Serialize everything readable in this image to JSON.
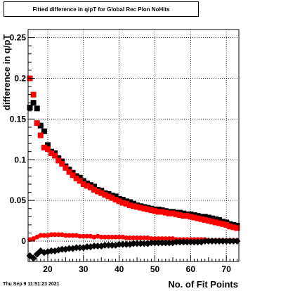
{
  "chart_data": {
    "type": "scatter",
    "title": "Fitted difference in q/pT for Global Rec Pion NoHits",
    "xlabel": "No. of Fit Points",
    "ylabel": "difference in q/pT",
    "xlim": [
      14.5,
      73.5
    ],
    "ylim": [
      -0.025,
      0.26
    ],
    "x_ticks": [
      20,
      30,
      40,
      50,
      60,
      70
    ],
    "y_ticks": [
      0,
      0.05,
      0.1,
      0.15,
      0.2,
      0.25
    ],
    "y_tick_labels": [
      "0",
      "0.05",
      "0.1",
      "0.15",
      "0.2",
      "0.25"
    ],
    "grid": true,
    "series": [
      {
        "color": "#000000",
        "marker": "square",
        "x": [
          15,
          16,
          17,
          18,
          19,
          20,
          21,
          22,
          23,
          24,
          25,
          26,
          27,
          28,
          29,
          30,
          31,
          32,
          33,
          34,
          35,
          36,
          37,
          38,
          39,
          40,
          41,
          42,
          43,
          44,
          45,
          46,
          47,
          48,
          49,
          50,
          51,
          52,
          53,
          54,
          55,
          56,
          57,
          58,
          59,
          60,
          61,
          62,
          63,
          64,
          65,
          66,
          67,
          68,
          69,
          70,
          71,
          72,
          73
        ],
        "y": [
          0.164,
          0.17,
          0.163,
          0.142,
          0.135,
          0.118,
          0.11,
          0.108,
          0.102,
          0.098,
          0.092,
          0.088,
          0.084,
          0.08,
          0.078,
          0.074,
          0.071,
          0.069,
          0.067,
          0.063,
          0.062,
          0.059,
          0.058,
          0.056,
          0.055,
          0.052,
          0.051,
          0.049,
          0.048,
          0.046,
          0.044,
          0.043,
          0.042,
          0.041,
          0.04,
          0.039,
          0.039,
          0.038,
          0.037,
          0.036,
          0.036,
          0.035,
          0.035,
          0.034,
          0.033,
          0.033,
          0.032,
          0.031,
          0.03,
          0.03,
          0.029,
          0.028,
          0.027,
          0.026,
          0.024,
          0.023,
          0.021,
          0.02,
          0.019
        ]
      },
      {
        "color": "#ff0000",
        "marker": "square",
        "x": [
          15,
          16,
          17,
          18,
          19,
          20,
          21,
          22,
          23,
          24,
          25,
          26,
          27,
          28,
          29,
          30,
          31,
          32,
          33,
          34,
          35,
          36,
          37,
          38,
          39,
          40,
          41,
          42,
          43,
          44,
          45,
          46,
          47,
          48,
          49,
          50,
          51,
          52,
          53,
          54,
          55,
          56,
          57,
          58,
          59,
          60,
          61,
          62,
          63,
          64,
          65,
          66,
          67,
          68,
          69,
          70,
          71,
          72,
          73
        ],
        "y": [
          0.2,
          0.18,
          0.145,
          0.13,
          0.115,
          0.113,
          0.108,
          0.105,
          0.099,
          0.095,
          0.09,
          0.085,
          0.081,
          0.077,
          0.074,
          0.07,
          0.068,
          0.066,
          0.063,
          0.061,
          0.059,
          0.057,
          0.055,
          0.053,
          0.051,
          0.049,
          0.047,
          0.046,
          0.044,
          0.043,
          0.042,
          0.041,
          0.04,
          0.039,
          0.038,
          0.037,
          0.036,
          0.036,
          0.035,
          0.034,
          0.034,
          0.033,
          0.032,
          0.031,
          0.031,
          0.03,
          0.029,
          0.028,
          0.027,
          0.026,
          0.025,
          0.024,
          0.023,
          0.022,
          0.021,
          0.02,
          0.018,
          0.017,
          0.016
        ]
      },
      {
        "color": "#ff0000",
        "marker": "circle",
        "x": [
          15,
          16,
          17,
          18,
          19,
          20,
          21,
          22,
          23,
          24,
          25,
          26,
          27,
          28,
          29,
          30,
          31,
          32,
          33,
          34,
          35,
          36,
          37,
          38,
          39,
          40,
          41,
          42,
          43,
          44,
          45,
          46,
          47,
          48,
          49,
          50,
          51,
          52,
          53,
          54,
          55,
          56,
          57,
          58,
          59,
          60,
          61,
          62,
          63,
          64,
          65,
          66,
          67,
          68,
          69,
          70,
          71,
          72,
          73
        ],
        "y": [
          0.002,
          0.003,
          0.005,
          0.007,
          0.007,
          0.007,
          0.008,
          0.008,
          0.008,
          0.008,
          0.007,
          0.007,
          0.007,
          0.007,
          0.006,
          0.006,
          0.006,
          0.006,
          0.005,
          0.006,
          0.005,
          0.005,
          0.005,
          0.005,
          0.005,
          0.005,
          0.005,
          0.004,
          0.004,
          0.004,
          0.004,
          0.004,
          0.004,
          0.004,
          0.003,
          0.003,
          0.003,
          0.003,
          0.003,
          0.003,
          0.003,
          0.002,
          0.002,
          0.002,
          0.002,
          0.002,
          0.002,
          0.002,
          0.002,
          0.002,
          0.001,
          0.001,
          0.001,
          0.001,
          0.001,
          0.001,
          0.001,
          0.001,
          0.001
        ]
      },
      {
        "color": "#000000",
        "marker": "diamond",
        "x": [
          15,
          16,
          17,
          18,
          19,
          20,
          21,
          22,
          23,
          24,
          25,
          26,
          27,
          28,
          29,
          30,
          31,
          32,
          33,
          34,
          35,
          36,
          37,
          38,
          39,
          40,
          41,
          42,
          43,
          44,
          45,
          46,
          47,
          48,
          49,
          50,
          51,
          52,
          53,
          54,
          55,
          56,
          57,
          58,
          59,
          60,
          61,
          62,
          63,
          64,
          65,
          66,
          67,
          68,
          69,
          70,
          71,
          72,
          73
        ],
        "y": [
          -0.018,
          -0.021,
          -0.016,
          -0.012,
          -0.014,
          -0.013,
          -0.012,
          -0.012,
          -0.011,
          -0.01,
          -0.01,
          -0.009,
          -0.009,
          -0.008,
          -0.008,
          -0.008,
          -0.007,
          -0.007,
          -0.006,
          -0.006,
          -0.006,
          -0.005,
          -0.005,
          -0.005,
          -0.005,
          -0.004,
          -0.004,
          -0.004,
          -0.004,
          -0.003,
          -0.003,
          -0.003,
          -0.003,
          -0.003,
          -0.002,
          -0.002,
          -0.002,
          -0.002,
          -0.002,
          -0.002,
          -0.002,
          -0.001,
          -0.001,
          -0.001,
          -0.001,
          -0.001,
          -0.001,
          -0.001,
          -0.001,
          0,
          0,
          0,
          0,
          0,
          0,
          0,
          0,
          0,
          0
        ]
      }
    ]
  },
  "footer": {
    "timestamp": "Thu Sep  9 11:51:23 2021"
  }
}
